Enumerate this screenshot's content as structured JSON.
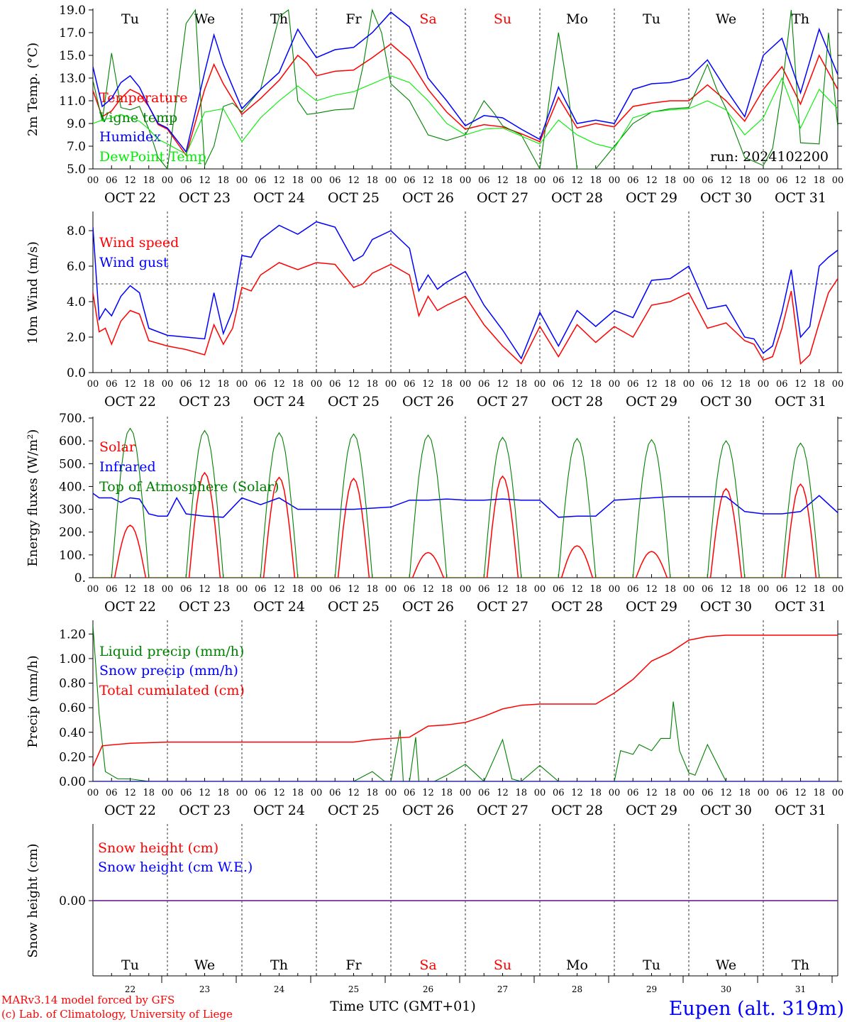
{
  "footer": {
    "model_credit": "MARv3.14 model forced by GFS",
    "lab_credit": "(c) Lab. of Climatology, University of Liege",
    "time_label": "Time UTC (GMT+01)",
    "location": "Eupen (alt. 319m)"
  },
  "colors": {
    "red": "#ff0000",
    "blue": "#0000ff",
    "dark_green": "#008000",
    "light_green": "#00ee00",
    "purple": "#7030a0",
    "weekend_day": "#ff0000"
  },
  "axis": {
    "hour_ticks": [
      "00",
      "06",
      "12",
      "18"
    ],
    "final_hour": "00",
    "date_labels": [
      "OCT 22",
      "OCT 23",
      "OCT 24",
      "OCT 25",
      "OCT 26",
      "OCT 27",
      "OCT 28",
      "OCT 29",
      "OCT 30",
      "OCT 31"
    ],
    "day_names": [
      "Tu",
      "We",
      "Th",
      "Fr",
      "Sa",
      "Su",
      "Mo",
      "Tu",
      "We",
      "Th"
    ],
    "weekend_index": [
      4,
      5
    ],
    "day_numbers": [
      "22",
      "23",
      "24",
      "25",
      "26",
      "27",
      "28",
      "29",
      "30",
      "31"
    ]
  },
  "chart_data": [
    {
      "id": "temp",
      "type": "line",
      "ylabel": "2m Temp. (°C)",
      "ylim": [
        5,
        19
      ],
      "yticks": [
        "5.0",
        "7.0",
        "9.0",
        "11.0",
        "13.0",
        "15.0",
        "17.0",
        "19.0"
      ],
      "x_unit": "hours since OCT 22 00 UTC",
      "run_label": "run: 2024102200",
      "series": [
        {
          "name": "Temperature",
          "color": "red",
          "x": [
            0,
            3,
            6,
            9,
            12,
            15,
            18,
            21,
            24,
            30,
            36,
            39,
            42,
            48,
            54,
            60,
            66,
            69,
            72,
            78,
            84,
            90,
            96,
            102,
            108,
            114,
            120,
            126,
            132,
            138,
            144,
            150,
            156,
            162,
            168,
            174,
            180,
            186,
            192,
            198,
            204,
            210,
            216,
            222,
            228,
            234,
            240
          ],
          "y": [
            11.9,
            9.6,
            10.1,
            11.2,
            12.0,
            11.6,
            10.5,
            8.9,
            8.5,
            6.2,
            12.0,
            14.2,
            12.5,
            9.8,
            11.2,
            12.8,
            15.0,
            14.3,
            13.2,
            13.6,
            13.7,
            14.8,
            16.0,
            14.6,
            12.0,
            10.0,
            8.5,
            8.9,
            8.7,
            8.1,
            7.4,
            11.3,
            8.6,
            9.0,
            8.7,
            10.5,
            10.8,
            11.0,
            11.0,
            12.4,
            11.0,
            9.2,
            12.0,
            14.0,
            10.7,
            15.0,
            12.0
          ]
        },
        {
          "name": "Vigne temp",
          "color": "dark_green",
          "x": [
            0,
            3,
            6,
            9,
            12,
            15,
            18,
            21,
            24,
            30,
            33,
            36,
            39,
            42,
            45,
            48,
            54,
            60,
            63,
            66,
            69,
            72,
            78,
            84,
            87,
            90,
            93,
            96,
            102,
            108,
            114,
            120,
            126,
            129,
            132,
            138,
            144,
            150,
            153,
            156,
            162,
            168,
            174,
            180,
            186,
            192,
            198,
            201,
            204,
            210,
            216,
            219,
            222,
            225,
            228,
            234,
            237,
            240
          ],
          "y": [
            12.8,
            9.2,
            15.2,
            10.4,
            10.2,
            10.5,
            8.5,
            6.0,
            5.0,
            17.8,
            19.0,
            5.3,
            7.0,
            10.5,
            10.8,
            10.0,
            12.0,
            18.4,
            19.0,
            11.0,
            9.8,
            9.9,
            10.2,
            10.3,
            14.0,
            19.0,
            17.0,
            12.5,
            11.0,
            8.0,
            7.5,
            8.0,
            11.0,
            10.0,
            8.8,
            8.0,
            5.0,
            17.0,
            12.0,
            5.0,
            5.0,
            7.0,
            9.0,
            10.0,
            10.3,
            10.4,
            14.2,
            12.0,
            10.3,
            6.0,
            5.3,
            6.8,
            12.0,
            19.0,
            7.3,
            7.2,
            17.0,
            8.7
          ]
        },
        {
          "name": "Humidex",
          "color": "blue",
          "x": [
            0,
            3,
            6,
            9,
            12,
            15,
            18,
            21,
            24,
            30,
            36,
            39,
            42,
            48,
            54,
            60,
            66,
            69,
            72,
            78,
            84,
            90,
            96,
            102,
            108,
            114,
            120,
            126,
            132,
            138,
            144,
            150,
            156,
            162,
            168,
            174,
            180,
            186,
            192,
            198,
            204,
            210,
            216,
            222,
            228,
            234,
            240
          ],
          "y": [
            14.0,
            10.5,
            11.2,
            12.6,
            13.2,
            12.2,
            10.5,
            9.0,
            8.6,
            6.5,
            13.5,
            16.8,
            14.2,
            10.3,
            12.0,
            13.5,
            17.3,
            16.0,
            14.8,
            15.5,
            15.7,
            17.0,
            18.8,
            17.5,
            13.0,
            11.0,
            8.8,
            9.7,
            9.5,
            8.5,
            7.6,
            12.2,
            9.0,
            9.3,
            9.0,
            12.0,
            12.5,
            12.6,
            13.0,
            14.6,
            12.0,
            9.6,
            15.0,
            16.5,
            11.7,
            17.3,
            13.3
          ]
        },
        {
          "name": "DewPoint Temp",
          "color": "light_green",
          "x": [
            0,
            3,
            6,
            9,
            12,
            15,
            18,
            21,
            24,
            30,
            36,
            42,
            48,
            54,
            60,
            66,
            72,
            78,
            84,
            90,
            96,
            102,
            108,
            114,
            120,
            126,
            132,
            138,
            144,
            150,
            156,
            162,
            168,
            174,
            180,
            186,
            192,
            198,
            204,
            210,
            216,
            222,
            228,
            234,
            240
          ],
          "y": [
            9.0,
            9.3,
            9.5,
            9.8,
            9.5,
            9.2,
            8.5,
            7.6,
            7.2,
            6.3,
            10.0,
            10.3,
            7.4,
            9.5,
            11.0,
            12.3,
            11.0,
            11.5,
            11.8,
            12.5,
            13.2,
            12.6,
            11.0,
            9.0,
            8.0,
            8.5,
            8.6,
            7.9,
            7.2,
            9.3,
            8.0,
            7.2,
            6.8,
            9.5,
            10.0,
            10.2,
            10.3,
            11.0,
            10.2,
            8.0,
            9.5,
            13.0,
            8.6,
            12.0,
            10.3
          ]
        }
      ]
    },
    {
      "id": "wind",
      "type": "line",
      "ylabel": "10m Wind (m/s)",
      "ylim": [
        0,
        9
      ],
      "yticks": [
        "0.0",
        "2.0",
        "4.0",
        "6.0",
        "8.0"
      ],
      "ref_line": 5.0,
      "series": [
        {
          "name": "Wind speed",
          "color": "red",
          "x": [
            0,
            2,
            4,
            6,
            9,
            12,
            15,
            18,
            24,
            30,
            36,
            39,
            42,
            45,
            48,
            51,
            54,
            60,
            66,
            72,
            78,
            84,
            87,
            90,
            96,
            102,
            105,
            108,
            111,
            114,
            120,
            126,
            132,
            138,
            144,
            150,
            156,
            162,
            168,
            174,
            180,
            186,
            192,
            198,
            204,
            210,
            213,
            216,
            219,
            222,
            225,
            228,
            231,
            234,
            237,
            240
          ],
          "y": [
            4.5,
            2.3,
            2.5,
            1.6,
            2.9,
            3.5,
            3.3,
            1.8,
            1.5,
            1.3,
            1.0,
            2.7,
            1.6,
            2.5,
            4.8,
            4.6,
            5.5,
            6.2,
            5.8,
            6.2,
            6.1,
            4.8,
            5.0,
            5.6,
            6.1,
            5.5,
            3.2,
            4.3,
            3.5,
            3.8,
            4.3,
            2.7,
            1.5,
            0.5,
            2.6,
            0.9,
            2.7,
            1.7,
            2.6,
            2.0,
            3.8,
            4.0,
            4.5,
            2.5,
            2.8,
            1.8,
            1.6,
            0.7,
            0.9,
            2.5,
            4.6,
            0.5,
            1.0,
            2.8,
            4.5,
            5.3
          ]
        },
        {
          "name": "Wind gust",
          "color": "blue",
          "x": [
            0,
            2,
            4,
            6,
            9,
            12,
            15,
            18,
            24,
            30,
            36,
            39,
            42,
            45,
            48,
            51,
            54,
            60,
            66,
            72,
            78,
            84,
            87,
            90,
            96,
            102,
            105,
            108,
            111,
            114,
            120,
            126,
            132,
            138,
            144,
            150,
            156,
            162,
            168,
            174,
            180,
            186,
            192,
            198,
            204,
            210,
            213,
            216,
            219,
            222,
            225,
            228,
            231,
            234,
            237,
            240
          ],
          "y": [
            8.2,
            3.0,
            3.6,
            3.2,
            4.3,
            4.9,
            4.5,
            2.5,
            2.1,
            2.0,
            1.9,
            4.5,
            2.2,
            3.5,
            6.6,
            6.5,
            7.5,
            8.3,
            7.8,
            8.5,
            8.2,
            6.3,
            6.6,
            7.5,
            8.0,
            7.0,
            4.6,
            5.5,
            4.7,
            5.1,
            5.7,
            3.8,
            2.4,
            0.8,
            3.4,
            1.5,
            3.5,
            2.6,
            3.5,
            3.1,
            5.2,
            5.3,
            6.0,
            3.6,
            3.8,
            2.0,
            1.9,
            1.1,
            1.5,
            3.4,
            5.8,
            2.0,
            2.6,
            6.0,
            6.5,
            6.9
          ]
        }
      ]
    },
    {
      "id": "energy",
      "type": "line",
      "ylabel": "Energy fluxes (W/m²)",
      "ylim": [
        0,
        700
      ],
      "yticks": [
        "0.",
        "100.",
        "200.",
        "300.",
        "400.",
        "500.",
        "600.",
        "700."
      ],
      "series": [
        {
          "name": "Solar",
          "color": "red",
          "shape": "daily_bell",
          "sunrise": 7,
          "sunset": 17,
          "peaks": [
            230,
            460,
            440,
            435,
            110,
            445,
            140,
            115,
            390,
            410
          ]
        },
        {
          "name": "Infrared",
          "color": "blue",
          "x": [
            0,
            2,
            6,
            9,
            12,
            15,
            18,
            21,
            24,
            27,
            30,
            36,
            42,
            48,
            54,
            60,
            66,
            72,
            78,
            84,
            90,
            96,
            102,
            108,
            114,
            120,
            126,
            132,
            138,
            144,
            150,
            156,
            162,
            168,
            174,
            180,
            186,
            192,
            198,
            204,
            210,
            216,
            222,
            228,
            234,
            240
          ],
          "y": [
            370,
            350,
            350,
            330,
            350,
            345,
            280,
            270,
            270,
            350,
            280,
            270,
            265,
            350,
            320,
            350,
            300,
            300,
            300,
            300,
            305,
            310,
            340,
            340,
            345,
            340,
            340,
            345,
            340,
            340,
            265,
            270,
            270,
            340,
            345,
            350,
            355,
            355,
            355,
            355,
            290,
            280,
            280,
            290,
            360,
            285
          ]
        },
        {
          "name": "Top of Atmosphere (Solar)",
          "color": "dark_green",
          "shape": "daily_bell",
          "sunrise": 6,
          "sunset": 18,
          "peaks": [
            655,
            645,
            635,
            630,
            625,
            615,
            610,
            605,
            600,
            590
          ]
        }
      ]
    },
    {
      "id": "precip",
      "type": "line",
      "ylabel": "Precip (mm/h)",
      "ylim": [
        0,
        1.3
      ],
      "yticks": [
        "0.00",
        "0.20",
        "0.40",
        "0.60",
        "0.80",
        "1.00",
        "1.20"
      ],
      "series": [
        {
          "name": "Liquid precip (mm/h)",
          "color": "dark_green",
          "x": [
            0,
            2,
            4,
            8,
            12,
            18,
            30,
            84,
            90,
            94,
            96,
            99,
            100,
            102,
            104,
            105,
            106,
            108,
            110,
            114,
            120,
            126,
            132,
            135,
            138,
            144,
            150,
            156,
            162,
            168,
            170,
            174,
            176,
            180,
            183,
            186,
            187,
            189,
            192,
            194,
            198,
            204,
            240
          ],
          "y": [
            1.27,
            0.55,
            0.08,
            0.02,
            0.02,
            0.0,
            0.0,
            0.0,
            0.08,
            0.0,
            0.0,
            0.42,
            0.0,
            0.0,
            0.36,
            0.0,
            0.0,
            0.0,
            0.0,
            0.05,
            0.14,
            0.0,
            0.34,
            0.02,
            0.0,
            0.13,
            0.0,
            0.0,
            0.0,
            0.0,
            0.25,
            0.22,
            0.3,
            0.25,
            0.35,
            0.35,
            0.65,
            0.25,
            0.07,
            0.05,
            0.3,
            0.0,
            0.0
          ]
        },
        {
          "name": "Snow precip (mm/h)",
          "color": "blue",
          "x": [
            0,
            240
          ],
          "y": [
            0.0,
            0.0
          ]
        },
        {
          "name": "Total cumulated (cm)",
          "color": "red",
          "x": [
            0,
            3,
            12,
            24,
            48,
            72,
            84,
            90,
            96,
            102,
            108,
            114,
            120,
            126,
            132,
            138,
            144,
            150,
            156,
            162,
            168,
            174,
            180,
            186,
            192,
            198,
            204,
            210,
            216,
            240
          ],
          "y": [
            0.12,
            0.29,
            0.31,
            0.32,
            0.32,
            0.32,
            0.32,
            0.34,
            0.35,
            0.36,
            0.45,
            0.46,
            0.48,
            0.53,
            0.59,
            0.62,
            0.63,
            0.63,
            0.63,
            0.63,
            0.72,
            0.83,
            0.98,
            1.05,
            1.15,
            1.18,
            1.19,
            1.19,
            1.19,
            1.19
          ]
        }
      ]
    },
    {
      "id": "snow",
      "type": "line",
      "ylabel": "Snow height (cm)",
      "ylim": [
        -1,
        1
      ],
      "yticks": [
        "0.00"
      ],
      "series": [
        {
          "name": "Snow height (cm)",
          "color": "red",
          "x": [
            0,
            240
          ],
          "y": [
            0.0,
            0.0
          ]
        },
        {
          "name": "Snow height (cm W.E.)",
          "color": "blue",
          "x": [
            0,
            240
          ],
          "y": [
            0.0,
            0.0
          ]
        }
      ]
    }
  ]
}
